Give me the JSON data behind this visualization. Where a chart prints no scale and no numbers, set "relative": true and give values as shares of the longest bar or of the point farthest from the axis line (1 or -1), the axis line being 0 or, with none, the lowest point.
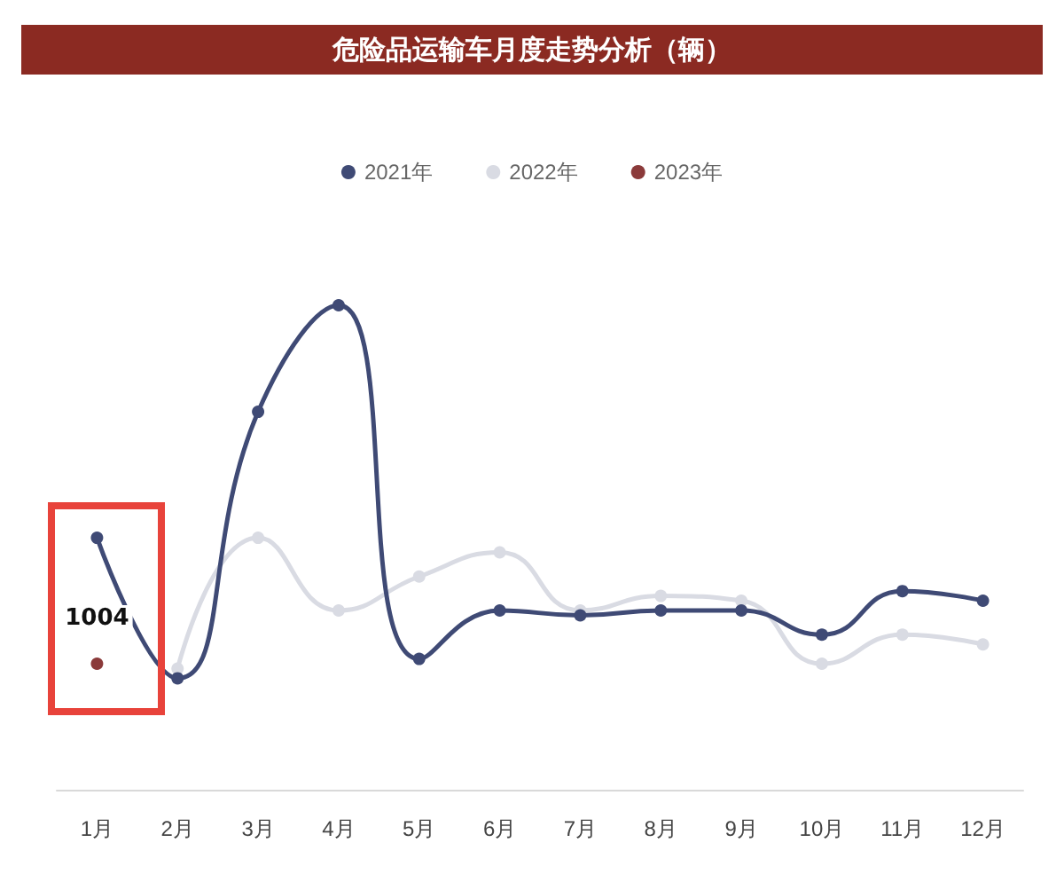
{
  "chart_data": {
    "type": "line",
    "title": "危险品运输车月度走势分析（辆）",
    "relative": true,
    "legend": "top",
    "marker": "circle",
    "grid": false,
    "categories": [
      "1月",
      "2月",
      "3月",
      "4月",
      "5月",
      "6月",
      "7月",
      "8月",
      "9月",
      "10月",
      "11月",
      "12月"
    ],
    "series": [
      {
        "name": "2021年",
        "color": "#3f4a75",
        "values": [
          0.52,
          0.23,
          0.78,
          1,
          0.27,
          0.37,
          0.36,
          0.37,
          0.37,
          0.32,
          0.41,
          0.39
        ]
      },
      {
        "name": "2022年",
        "color": "#d9dbe3",
        "values": [
          null,
          0.25,
          0.52,
          0.37,
          0.44,
          0.49,
          0.37,
          0.4,
          0.39,
          0.26,
          0.32,
          0.3
        ]
      },
      {
        "name": "2023年",
        "color": "#8b3a3a",
        "values": [
          0.26,
          null,
          null,
          null,
          null,
          null,
          null,
          null,
          null,
          null,
          null,
          null
        ]
      }
    ],
    "annotations": [
      {
        "text": "1004",
        "x": "1月",
        "y": 0.26
      }
    ]
  }
}
